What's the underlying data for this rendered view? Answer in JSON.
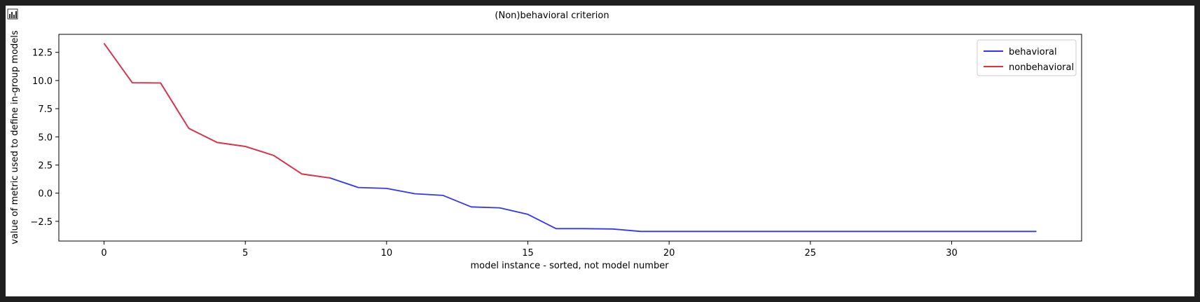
{
  "toolbar": {
    "icon": "bar-chart-icon"
  },
  "chart_data": {
    "type": "line",
    "title": "(Non)behavioral criterion",
    "xlabel": "model instance - sorted, not model number",
    "ylabel": "value of metric used to define in-group models",
    "xlim": [
      -1.6,
      34.6
    ],
    "ylim": [
      -4.25,
      14.1
    ],
    "xticks": [
      0,
      5,
      10,
      15,
      20,
      25,
      30
    ],
    "xtick_labels": [
      "0",
      "5",
      "10",
      "15",
      "20",
      "25",
      "30"
    ],
    "yticks": [
      -2.5,
      0.0,
      2.5,
      5.0,
      7.5,
      10.0,
      12.5
    ],
    "ytick_labels": [
      "−2.5",
      "0.0",
      "2.5",
      "5.0",
      "7.5",
      "10.0",
      "12.5"
    ],
    "grid": false,
    "legend_position": "top-right",
    "series": [
      {
        "name": "behavioral",
        "color": "#3333ff",
        "x": [
          0,
          1,
          2,
          3,
          4,
          5,
          6,
          7,
          8,
          9,
          10,
          11,
          12,
          13,
          14,
          15,
          16,
          17,
          18,
          19,
          20,
          21,
          22,
          23,
          24,
          25,
          26,
          27,
          28,
          29,
          30,
          31,
          32,
          33
        ],
        "y": [
          13.3,
          9.8,
          9.78,
          5.75,
          4.5,
          4.15,
          3.35,
          1.7,
          1.35,
          0.5,
          0.42,
          -0.05,
          -0.2,
          -1.22,
          -1.3,
          -1.88,
          -3.15,
          -3.15,
          -3.18,
          -3.4,
          -3.4,
          -3.4,
          -3.4,
          -3.4,
          -3.4,
          -3.4,
          -3.4,
          -3.4,
          -3.4,
          -3.4,
          -3.4,
          -3.4,
          -3.4,
          -3.4
        ]
      },
      {
        "name": "nonbehavioral",
        "color": "#e8303a",
        "x": [
          0,
          1,
          2,
          3,
          4,
          5,
          6,
          7,
          8
        ],
        "y": [
          13.3,
          9.8,
          9.78,
          5.75,
          4.5,
          4.15,
          3.35,
          1.7,
          1.35
        ]
      }
    ]
  }
}
